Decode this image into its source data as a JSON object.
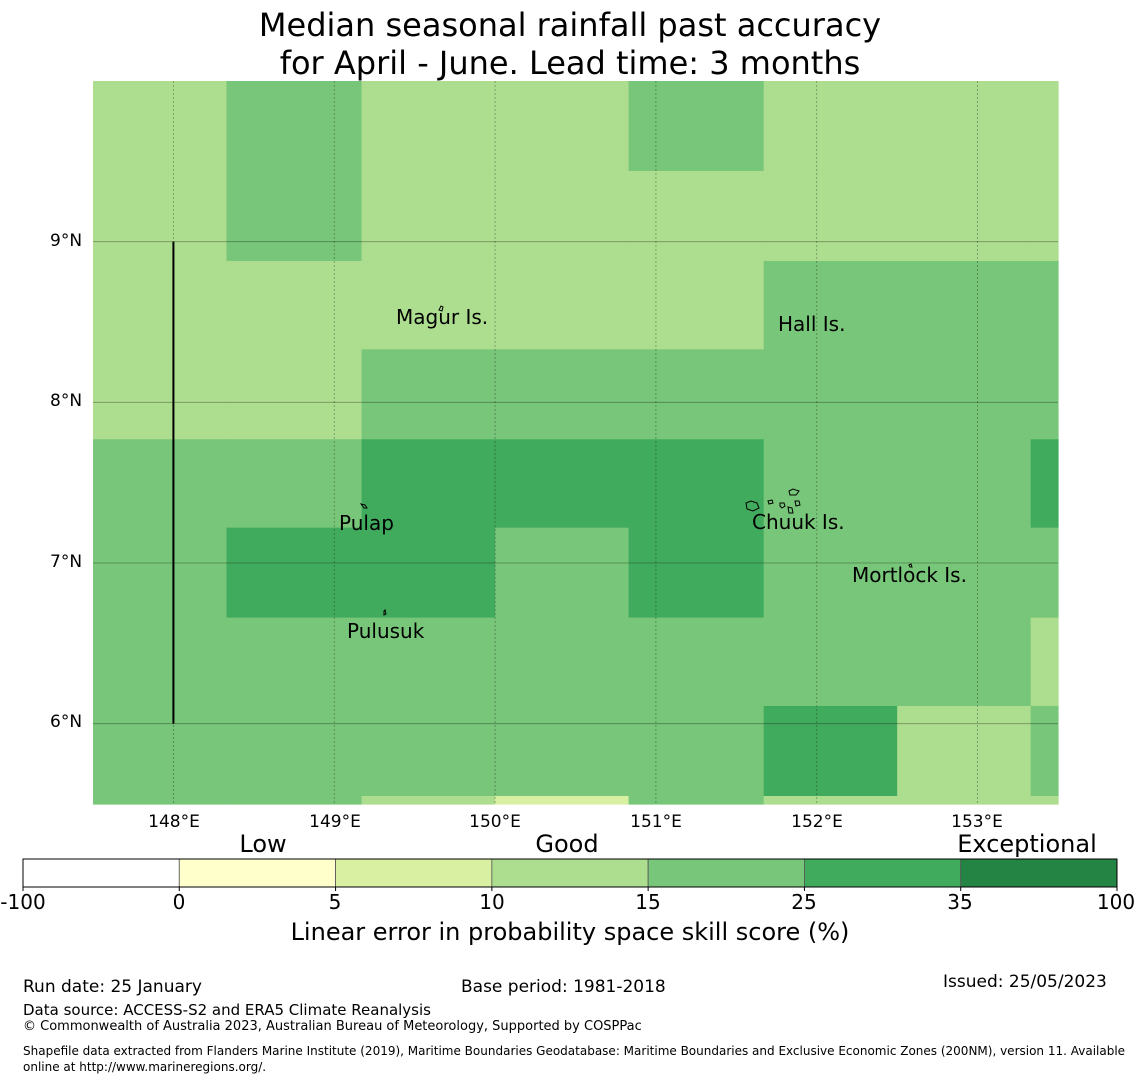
{
  "title": {
    "line1": "Median seasonal rainfall past accuracy",
    "line2": "for April - June. Lead time: 3 months"
  },
  "map": {
    "lon_range": [
      147.5,
      153.5
    ],
    "lat_range": [
      5.5,
      10.0
    ],
    "x_ticks": [
      "148°E",
      "149°E",
      "150°E",
      "151°E",
      "152°E",
      "153°E"
    ],
    "y_ticks": [
      "9°N",
      "8°N",
      "7°N",
      "6°N"
    ],
    "x_tick_values": [
      148,
      149,
      150,
      151,
      152,
      153
    ],
    "y_tick_values": [
      9,
      8,
      7,
      6
    ],
    "grid_lon_edges": [
      147.5,
      148.33,
      149.17,
      150.0,
      150.83,
      151.67,
      152.5,
      153.33,
      153.5
    ],
    "grid_lat_edges": [
      10.0,
      9.44,
      8.88,
      8.33,
      7.77,
      7.22,
      6.66,
      6.11,
      5.55,
      5.5
    ],
    "skill_categories": [
      [
        3,
        4,
        3,
        3,
        4,
        3,
        3,
        3
      ],
      [
        3,
        4,
        3,
        3,
        3,
        3,
        3,
        3
      ],
      [
        3,
        3,
        3,
        3,
        3,
        4,
        4,
        4
      ],
      [
        3,
        3,
        4,
        4,
        4,
        4,
        4,
        4
      ],
      [
        4,
        4,
        5,
        5,
        5,
        4,
        4,
        5
      ],
      [
        4,
        5,
        5,
        4,
        5,
        4,
        4,
        4
      ],
      [
        4,
        4,
        4,
        4,
        4,
        4,
        4,
        3
      ],
      [
        4,
        4,
        4,
        4,
        4,
        5,
        3,
        4
      ],
      [
        4,
        4,
        3,
        2,
        4,
        3,
        3,
        3
      ]
    ],
    "boundary_line": {
      "lon": 148.0,
      "lat_from": 6.0,
      "lat_to": 9.0
    },
    "islands": [
      {
        "name": "Magur Is.",
        "lon": 149.7,
        "lat": 8.55
      },
      {
        "name": "Hall Is.",
        "lon": 151.85,
        "lat": 8.47
      },
      {
        "name": "Pulap",
        "lon": 149.3,
        "lat": 7.35
      },
      {
        "name": "Chuuk Is.",
        "lon": 151.8,
        "lat": 7.4
      },
      {
        "name": "Mortlock Is.",
        "lon": 152.6,
        "lat": 6.95
      },
      {
        "name": "Pulusuk",
        "lon": 149.3,
        "lat": 6.68
      }
    ]
  },
  "legend": {
    "category_labels": [
      "Low",
      "Good",
      "Exceptional"
    ],
    "bins": [
      "-100",
      "0",
      "5",
      "10",
      "15",
      "25",
      "35",
      "100"
    ],
    "bin_colors": [
      "#ffffff",
      "#ffffcc",
      "#d9f0a3",
      "#addd8e",
      "#78c679",
      "#41ab5d",
      "#238443"
    ],
    "axis_label": "Linear error in probability space skill score (%)"
  },
  "footer": {
    "run_date": "Run date: 25 January",
    "base_period": "Base period: 1981-2018",
    "issued": "Issued: 25/05/2023",
    "data_source": "Data source: ACCESS-S2 and ERA5 Climate Reanalysis",
    "copyright": "© Commonwealth of Australia 2023, Australian Bureau of Meteorology, Supported by COSPPac",
    "shapefile": "Shapefile data extracted from Flanders Marine Institute (2019), Maritime Boundaries Geodatabase: Maritime Boundaries and Exclusive Economic Zones (200NM), version 11. Available online at http://www.marineregions.org/."
  }
}
